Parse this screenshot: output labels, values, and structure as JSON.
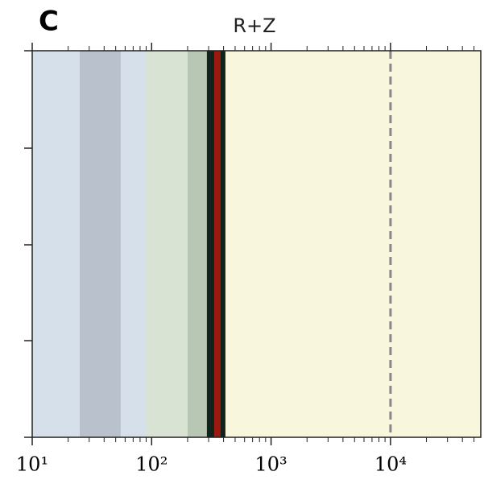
{
  "panel_label": "C",
  "chart_data": {
    "type": "bands",
    "title": "R+Z",
    "xscale": "log",
    "xlim": [
      10,
      57000
    ],
    "xticks": [
      {
        "value": 10,
        "label": "10¹"
      },
      {
        "value": 100,
        "label": "10²"
      },
      {
        "value": 1000,
        "label": "10³"
      },
      {
        "value": 10000,
        "label": "10⁴"
      }
    ],
    "xminorticks": [
      20,
      30,
      40,
      50,
      60,
      70,
      80,
      90,
      200,
      300,
      400,
      500,
      600,
      700,
      800,
      900,
      2000,
      3000,
      4000,
      5000,
      6000,
      7000,
      8000,
      9000,
      20000,
      30000,
      40000,
      50000
    ],
    "bands": [
      {
        "from": 10,
        "to": 90,
        "color": "#d5e0ea"
      },
      {
        "from": 25,
        "to": 55,
        "color": "#b9c2cc"
      },
      {
        "from": 90,
        "to": 290,
        "color": "#d8e3d4"
      },
      {
        "from": 200,
        "to": 290,
        "color": "#b8c6b4"
      },
      {
        "from": 290,
        "to": 415,
        "color": "#10231a"
      },
      {
        "from": 415,
        "to": 57000,
        "color": "#f8f6dc"
      }
    ],
    "lines": [
      {
        "x": 355,
        "color": "#9a1a10",
        "dash": false
      },
      {
        "x": 10000,
        "color": "#888888",
        "dash": true
      }
    ]
  }
}
